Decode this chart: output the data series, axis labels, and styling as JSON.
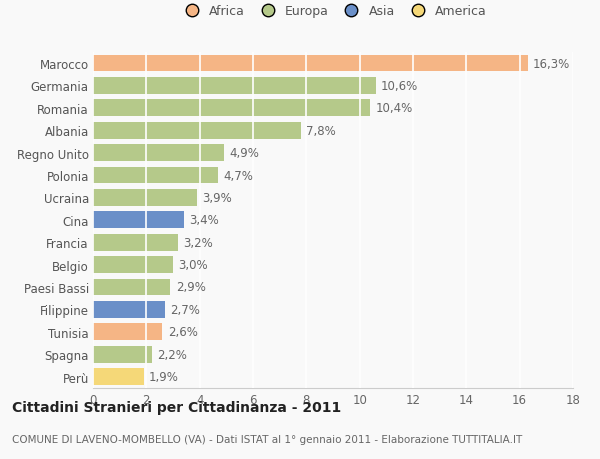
{
  "categories": [
    "Marocco",
    "Germania",
    "Romania",
    "Albania",
    "Regno Unito",
    "Polonia",
    "Ucraina",
    "Cina",
    "Francia",
    "Belgio",
    "Paesi Bassi",
    "Filippine",
    "Tunisia",
    "Spagna",
    "Perù"
  ],
  "values": [
    16.3,
    10.6,
    10.4,
    7.8,
    4.9,
    4.7,
    3.9,
    3.4,
    3.2,
    3.0,
    2.9,
    2.7,
    2.6,
    2.2,
    1.9
  ],
  "labels": [
    "16,3%",
    "10,6%",
    "10,4%",
    "7,8%",
    "4,9%",
    "4,7%",
    "3,9%",
    "3,4%",
    "3,2%",
    "3,0%",
    "2,9%",
    "2,7%",
    "2,6%",
    "2,2%",
    "1,9%"
  ],
  "colors": [
    "#f5b585",
    "#b5c98a",
    "#b5c98a",
    "#b5c98a",
    "#b5c98a",
    "#b5c98a",
    "#b5c98a",
    "#6a8fc8",
    "#b5c98a",
    "#b5c98a",
    "#b5c98a",
    "#6a8fc8",
    "#f5b585",
    "#b5c98a",
    "#f5d878"
  ],
  "legend_labels": [
    "Africa",
    "Europa",
    "Asia",
    "America"
  ],
  "legend_colors": [
    "#f5b585",
    "#b5c98a",
    "#6a8fc8",
    "#f5d878"
  ],
  "title": "Cittadini Stranieri per Cittadinanza - 2011",
  "subtitle": "COMUNE DI LAVENO-MOMBELLO (VA) - Dati ISTAT al 1° gennaio 2011 - Elaborazione TUTTITALIA.IT",
  "xlim": [
    0,
    18
  ],
  "xticks": [
    0,
    2,
    4,
    6,
    8,
    10,
    12,
    14,
    16,
    18
  ],
  "background_color": "#f9f9f9",
  "grid_color": "#ffffff",
  "bar_height": 0.75,
  "label_fontsize": 8.5,
  "tick_fontsize": 8.5,
  "title_fontsize": 10,
  "subtitle_fontsize": 7.5
}
